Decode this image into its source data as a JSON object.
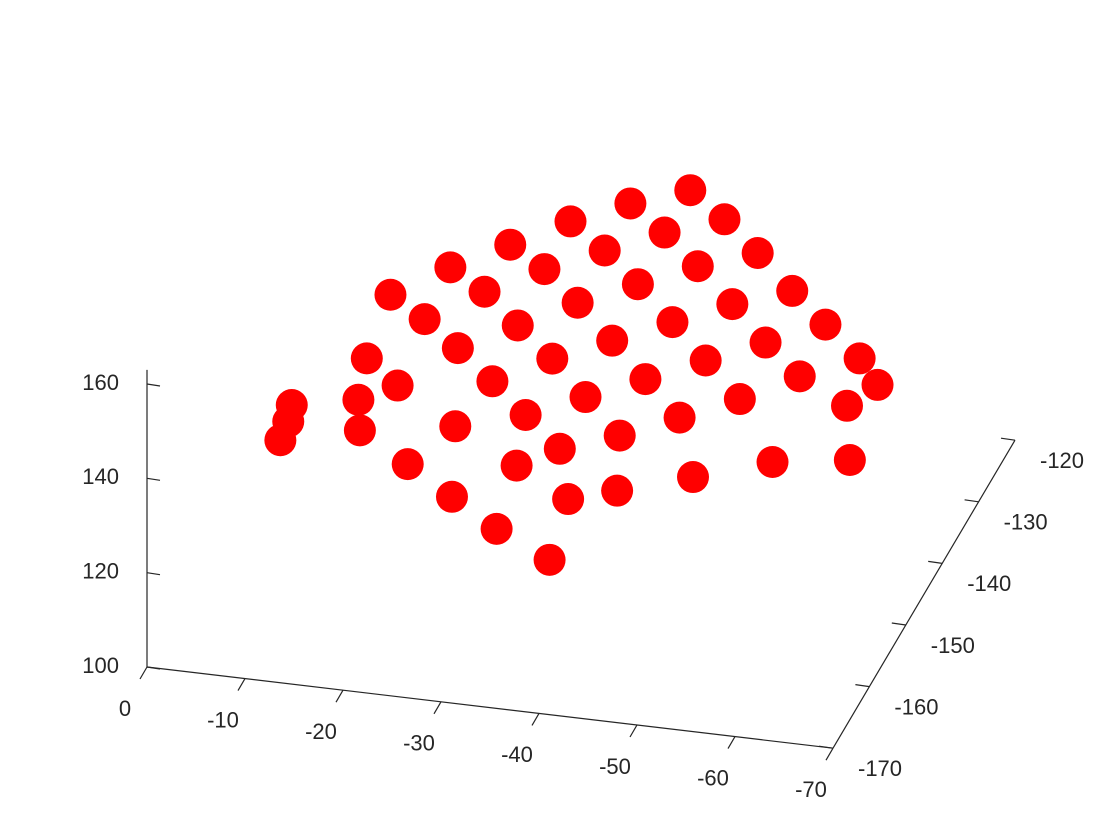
{
  "chart_data": {
    "type": "scatter3d",
    "color": "#ff0000",
    "x": [
      -15,
      -19.7,
      -24.4,
      -29.1,
      -33.8,
      -38.5,
      -19.9,
      -24.6,
      -29.3,
      -34.0,
      -38.7,
      -43.4,
      -24.7,
      -29.4,
      -34.1,
      -38.8,
      -43.5,
      -48.2,
      -29.6,
      -34.3,
      -39.0,
      -43.7,
      -48.4,
      -53.1,
      -34.4,
      -39.1,
      -43.8,
      -48.5,
      -53.2,
      -57.9,
      -39.3,
      -44.0,
      -48.7,
      -53.4,
      -58.1,
      -62.8,
      -17.6,
      -23,
      -28,
      -33,
      -39,
      -20,
      -27,
      -34,
      -40,
      -45,
      -52,
      -59,
      -66,
      -64,
      -66,
      -15,
      -16,
      -11.9,
      -11.8,
      -12
    ],
    "y": [
      -143.5,
      -139.7,
      -135.9,
      -132.0,
      -128.2,
      -124.4,
      -147.3,
      -143.5,
      -139.7,
      -135.8,
      -132.0,
      -128.2,
      -151.1,
      -147.3,
      -143.5,
      -139.6,
      -135.8,
      -132.0,
      -154.8,
      -151.0,
      -147.2,
      -143.3,
      -139.5,
      -135.7,
      -158.6,
      -154.8,
      -151.0,
      -147.1,
      -143.3,
      -139.5,
      -162.4,
      -158.6,
      -154.8,
      -150.9,
      -147.1,
      -143.3,
      -158.9,
      -160.3,
      -161.6,
      -162.8,
      -164.4,
      -155,
      -158,
      -160,
      -162,
      -162,
      -160,
      -157,
      -154.6,
      -150,
      -147,
      -150,
      -155,
      -165.4,
      -162,
      -163.5
    ],
    "z": [
      148,
      150,
      151,
      152,
      152,
      151,
      149,
      151,
      152,
      152,
      152,
      151,
      149,
      150,
      151,
      151,
      151,
      150,
      148,
      149,
      149,
      149,
      149,
      148,
      147,
      147,
      147,
      147,
      147,
      147,
      146,
      145,
      145,
      145,
      146,
      146,
      140,
      136,
      132,
      128,
      125,
      145,
      142,
      138,
      135,
      138,
      140,
      141,
      140,
      145,
      146,
      143,
      141,
      145,
      148,
      146.5
    ],
    "xlim": [
      -70,
      0
    ],
    "ylim": [
      -170,
      -120
    ],
    "zlim": [
      100,
      163
    ],
    "xticks": [
      -70,
      -60,
      -50,
      -40,
      -30,
      -20,
      -10,
      0
    ],
    "yticks": [
      -170,
      -160,
      -150,
      -140,
      -130,
      -120
    ],
    "zticks": [
      100,
      120,
      140,
      160
    ]
  }
}
